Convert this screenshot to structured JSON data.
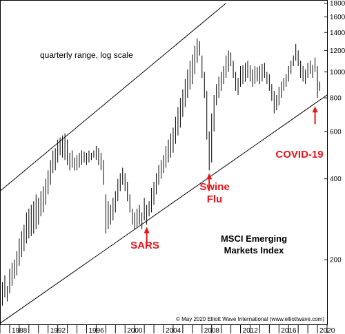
{
  "chart_data": {
    "type": "candlestick-range",
    "subtitle": "quarterly range, log scale",
    "title_lines": [
      "MSCI Emerging",
      "Markets Index"
    ],
    "credit": "© May 2020 Elliott Wave International (www.elliottwave.com)",
    "y_scale": "log",
    "y_range": [
      115,
      1850
    ],
    "y_ticks": [
      "200",
      "400",
      "600",
      "800",
      "1000",
      "1200",
      "1400",
      "1600",
      "1800"
    ],
    "x_range": [
      1987.0,
      2021.0
    ],
    "x_ticks": [
      "1988",
      "1992",
      "1996",
      "2000",
      "2004",
      "2008",
      "2012",
      "2016",
      "2020"
    ],
    "channel": {
      "upper": [
        [
          1987.0,
          360
        ],
        [
          2010.5,
          1800
        ]
      ],
      "lower": [
        [
          1987.0,
          116
        ],
        [
          2021.0,
          820
        ]
      ]
    },
    "annotations": [
      {
        "label": "SARS",
        "x": 2002.25,
        "y": 265,
        "lines": [
          "SARS"
        ]
      },
      {
        "label": "Swine Flu",
        "x": 2008.75,
        "y": 420,
        "lines": [
          "Swine",
          "Flu"
        ]
      },
      {
        "label": "COVID-19",
        "x": 2019.75,
        "y": 745,
        "lines": [
          "COVID-19"
        ]
      }
    ],
    "series": [
      {
        "values": [
          [
            1987.0,
            125,
            150
          ],
          [
            1987.25,
            135,
            165
          ],
          [
            1987.5,
            145,
            175
          ],
          [
            1987.75,
            140,
            160
          ],
          [
            1988.0,
            150,
            185
          ],
          [
            1988.25,
            160,
            195
          ],
          [
            1988.5,
            170,
            200
          ],
          [
            1988.75,
            175,
            215
          ],
          [
            1989.0,
            190,
            240
          ],
          [
            1989.25,
            205,
            255
          ],
          [
            1989.5,
            215,
            270
          ],
          [
            1989.75,
            230,
            300
          ],
          [
            1990.0,
            240,
            310
          ],
          [
            1990.25,
            245,
            320
          ],
          [
            1990.5,
            250,
            330
          ],
          [
            1990.75,
            260,
            350
          ],
          [
            1991.0,
            270,
            340
          ],
          [
            1991.25,
            290,
            360
          ],
          [
            1991.5,
            300,
            375
          ],
          [
            1991.75,
            320,
            400
          ],
          [
            1992.0,
            350,
            430
          ],
          [
            1992.25,
            380,
            470
          ],
          [
            1992.5,
            420,
            510
          ],
          [
            1992.75,
            430,
            520
          ],
          [
            1993.0,
            460,
            560
          ],
          [
            1993.25,
            490,
            570
          ],
          [
            1993.5,
            480,
            580
          ],
          [
            1993.75,
            470,
            590
          ],
          [
            1994.0,
            450,
            560
          ],
          [
            1994.25,
            430,
            500
          ],
          [
            1994.5,
            440,
            510
          ],
          [
            1994.75,
            430,
            480
          ],
          [
            1995.0,
            430,
            490
          ],
          [
            1995.25,
            440,
            500
          ],
          [
            1995.5,
            450,
            510
          ],
          [
            1995.75,
            460,
            505
          ],
          [
            1996.0,
            450,
            500
          ],
          [
            1996.25,
            460,
            510
          ],
          [
            1996.5,
            470,
            500
          ],
          [
            1996.75,
            480,
            510
          ],
          [
            1997.0,
            470,
            530
          ],
          [
            1997.25,
            450,
            520
          ],
          [
            1997.5,
            430,
            500
          ],
          [
            1997.75,
            380,
            470
          ],
          [
            1998.0,
            250,
            350
          ],
          [
            1998.25,
            260,
            330
          ],
          [
            1998.5,
            270,
            320
          ],
          [
            1998.75,
            280,
            340
          ],
          [
            1999.0,
            300,
            360
          ],
          [
            1999.25,
            330,
            400
          ],
          [
            1999.5,
            360,
            420
          ],
          [
            1999.75,
            380,
            440
          ],
          [
            2000.0,
            360,
            420
          ],
          [
            2000.25,
            330,
            390
          ],
          [
            2000.5,
            300,
            350
          ],
          [
            2000.75,
            270,
            310
          ],
          [
            2001.0,
            260,
            300
          ],
          [
            2001.25,
            265,
            310
          ],
          [
            2001.5,
            270,
            320
          ],
          [
            2001.75,
            260,
            300
          ],
          [
            2002.0,
            280,
            340
          ],
          [
            2002.25,
            270,
            320
          ],
          [
            2002.5,
            290,
            330
          ],
          [
            2002.75,
            300,
            370
          ],
          [
            2003.0,
            320,
            390
          ],
          [
            2003.25,
            350,
            420
          ],
          [
            2003.5,
            380,
            450
          ],
          [
            2003.75,
            400,
            470
          ],
          [
            2004.0,
            420,
            490
          ],
          [
            2004.25,
            440,
            530
          ],
          [
            2004.5,
            460,
            560
          ],
          [
            2004.75,
            480,
            590
          ],
          [
            2005.0,
            500,
            620
          ],
          [
            2005.25,
            540,
            680
          ],
          [
            2005.5,
            580,
            740
          ],
          [
            2005.75,
            620,
            800
          ],
          [
            2006.0,
            680,
            860
          ],
          [
            2006.25,
            740,
            940
          ],
          [
            2006.5,
            800,
            1020
          ],
          [
            2006.75,
            860,
            1100
          ],
          [
            2007.0,
            900,
            1160
          ],
          [
            2007.25,
            980,
            1250
          ],
          [
            2007.5,
            1080,
            1330
          ],
          [
            2007.75,
            1150,
            1300
          ],
          [
            2008.0,
            950,
            1150
          ],
          [
            2008.25,
            800,
            1000
          ],
          [
            2008.5,
            560,
            850
          ],
          [
            2008.75,
            430,
            600
          ],
          [
            2009.0,
            460,
            700
          ],
          [
            2009.25,
            600,
            820
          ],
          [
            2009.5,
            750,
            900
          ],
          [
            2009.75,
            800,
            960
          ],
          [
            2010.0,
            850,
            1000
          ],
          [
            2010.25,
            900,
            1050
          ],
          [
            2010.5,
            950,
            1150
          ],
          [
            2010.75,
            1000,
            1200
          ],
          [
            2011.0,
            1050,
            1180
          ],
          [
            2011.25,
            950,
            1100
          ],
          [
            2011.5,
            850,
            1000
          ],
          [
            2011.75,
            820,
            950
          ],
          [
            2012.0,
            880,
            1050
          ],
          [
            2012.25,
            900,
            1060
          ],
          [
            2012.5,
            920,
            1080
          ],
          [
            2012.75,
            950,
            1100
          ],
          [
            2013.0,
            920,
            1060
          ],
          [
            2013.25,
            880,
            1020
          ],
          [
            2013.5,
            900,
            1050
          ],
          [
            2013.75,
            920,
            1040
          ],
          [
            2014.0,
            900,
            1050
          ],
          [
            2014.25,
            920,
            1070
          ],
          [
            2014.5,
            950,
            1080
          ],
          [
            2014.75,
            900,
            1000
          ],
          [
            2015.0,
            850,
            980
          ],
          [
            2015.25,
            780,
            900
          ],
          [
            2015.5,
            700,
            850
          ],
          [
            2015.75,
            720,
            820
          ],
          [
            2016.0,
            750,
            880
          ],
          [
            2016.25,
            800,
            920
          ],
          [
            2016.5,
            850,
            950
          ],
          [
            2016.75,
            880,
            980
          ],
          [
            2017.0,
            920,
            1050
          ],
          [
            2017.25,
            980,
            1100
          ],
          [
            2017.5,
            1050,
            1150
          ],
          [
            2017.75,
            1100,
            1270
          ],
          [
            2018.0,
            1050,
            1200
          ],
          [
            2018.25,
            950,
            1100
          ],
          [
            2018.5,
            920,
            1050
          ],
          [
            2018.75,
            900,
            1020
          ],
          [
            2019.0,
            950,
            1080
          ],
          [
            2019.25,
            980,
            1100
          ],
          [
            2019.5,
            950,
            1060
          ],
          [
            2019.75,
            1000,
            1130
          ],
          [
            2020.0,
            800,
            1050
          ],
          [
            2020.25,
            850,
            920
          ]
        ]
      }
    ]
  }
}
